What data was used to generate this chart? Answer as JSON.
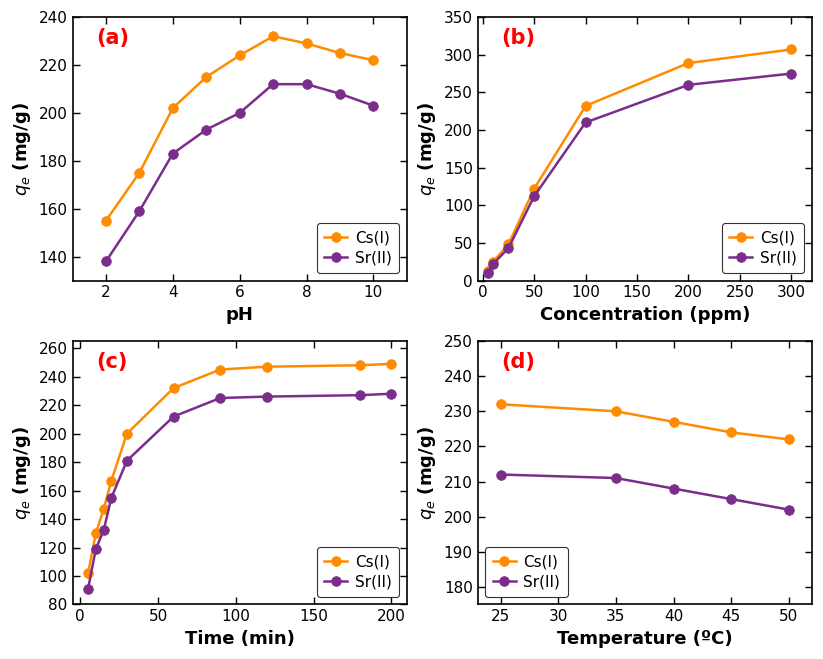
{
  "panel_a": {
    "label": "(a)",
    "xlabel": "pH",
    "xlim": [
      1,
      11
    ],
    "ylim": [
      130,
      240
    ],
    "xticks": [
      2,
      4,
      6,
      8,
      10
    ],
    "yticks": [
      140,
      160,
      180,
      200,
      220,
      240
    ],
    "cs_x": [
      2,
      3,
      4,
      5,
      6,
      7,
      8,
      9,
      10
    ],
    "cs_y": [
      155,
      175,
      202,
      215,
      224,
      232,
      229,
      225,
      222
    ],
    "sr_x": [
      2,
      3,
      4,
      5,
      6,
      7,
      8,
      9,
      10
    ],
    "sr_y": [
      138,
      159,
      183,
      193,
      200,
      212,
      212,
      208,
      203
    ],
    "legend_loc": "lower right"
  },
  "panel_b": {
    "label": "(b)",
    "xlabel": "Concentration (ppm)",
    "xlim": [
      -5,
      320
    ],
    "ylim": [
      0,
      350
    ],
    "xticks": [
      0,
      50,
      100,
      150,
      200,
      250,
      300
    ],
    "yticks": [
      0,
      50,
      100,
      150,
      200,
      250,
      300,
      350
    ],
    "cs_x": [
      5,
      10,
      25,
      50,
      100,
      200,
      300
    ],
    "cs_y": [
      12,
      25,
      48,
      122,
      232,
      289,
      307
    ],
    "sr_x": [
      5,
      10,
      25,
      50,
      100,
      200,
      300
    ],
    "sr_y": [
      10,
      22,
      43,
      112,
      210,
      260,
      275
    ],
    "legend_loc": "lower right"
  },
  "panel_c": {
    "label": "(c)",
    "xlabel": "Time (min)",
    "xlim": [
      -5,
      210
    ],
    "ylim": [
      80,
      265
    ],
    "xticks": [
      0,
      50,
      100,
      150,
      200
    ],
    "yticks": [
      80,
      100,
      120,
      140,
      160,
      180,
      200,
      220,
      240,
      260
    ],
    "cs_x": [
      5,
      10,
      15,
      20,
      30,
      60,
      90,
      120,
      180,
      200
    ],
    "cs_y": [
      102,
      130,
      147,
      167,
      200,
      232,
      245,
      247,
      248,
      249
    ],
    "sr_x": [
      5,
      10,
      15,
      20,
      30,
      60,
      90,
      120,
      180,
      200
    ],
    "sr_y": [
      91,
      119,
      132,
      155,
      181,
      212,
      225,
      226,
      227,
      228
    ],
    "legend_loc": "lower right"
  },
  "panel_d": {
    "label": "(d)",
    "xlabel": "Temperature (ºC)",
    "xlim": [
      23,
      52
    ],
    "ylim": [
      175,
      250
    ],
    "xticks": [
      25,
      30,
      35,
      40,
      45,
      50
    ],
    "yticks": [
      180,
      190,
      200,
      210,
      220,
      230,
      240,
      250
    ],
    "cs_x": [
      25,
      35,
      40,
      45,
      50
    ],
    "cs_y": [
      232,
      230,
      227,
      224,
      222
    ],
    "sr_x": [
      25,
      35,
      40,
      45,
      50
    ],
    "sr_y": [
      212,
      211,
      208,
      205,
      202
    ],
    "legend_loc": "lower left"
  },
  "ylabel": "q_e (mg/g)",
  "cs_color": "#FF8C00",
  "sr_color": "#7B2D8B",
  "cs_label": "Cs(I)",
  "sr_label": "Sr(II)",
  "marker_size": 7,
  "line_width": 1.8,
  "background": "#ffffff",
  "label_color": "#FF0000",
  "label_fontsize": 15,
  "axis_label_fontsize": 13,
  "tick_fontsize": 11,
  "legend_fontsize": 11
}
